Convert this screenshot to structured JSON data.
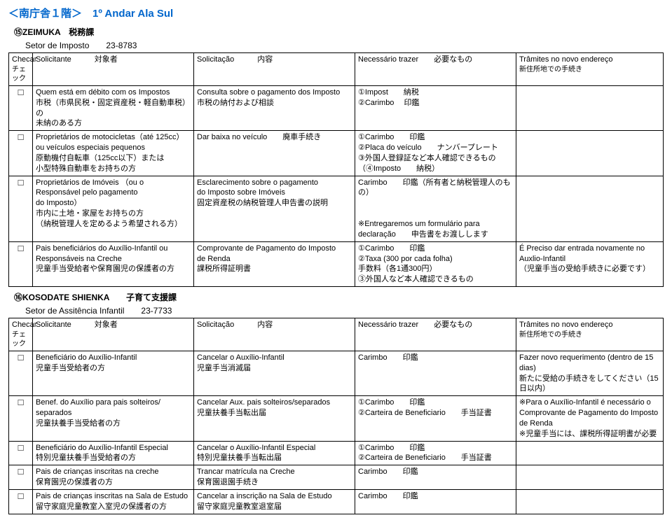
{
  "page_title": "＜南庁舎１階＞　1º Andar Ala Sul",
  "sections": [
    {
      "id": "zeimuka",
      "title": "⑮ZEIMUKA　税務課",
      "subtitle": "Setor de Imposto　　23-8783",
      "headers": {
        "check1": "Checar",
        "check2": "チェック",
        "applicant1": "Solicitante　　　対象者",
        "request1": "Solicitação　　　内容",
        "bring1": "Necessário trazer　　必要なもの",
        "tramite1": "Trâmites no novo endereço",
        "tramite2": "新住所地での手続き"
      },
      "rows": [
        {
          "applicant": "Quem está em débito com os Impostos\n市税（市県民税・固定資産税・軽自動車税）の\n未納のある方",
          "request": "Consulta sobre o pagamento dos Imposto\n市税の納付および相談",
          "bring": "①Impost　　納税\n②Carimbo　 印鑑",
          "tramite": ""
        },
        {
          "applicant": "Proprietários de motocicletas（até 125cc）\nou veículos especiais pequenos\n原動機付自転車（125cc以下）または\n小型特殊自動車をお持ちの方",
          "request": "Dar baixa no veículo　　廃車手続き",
          "bring": "①Carimbo　　印鑑\n②Placa do veículo　　ナンバープレート\n③外国人登録証など本人確認できるもの\n（④Imposto　　納税）",
          "tramite": ""
        },
        {
          "applicant": "Proprietários de Imóveis （ou o\nResponsável pelo pagamento\ndo Imposto）\n市内に土地・家屋をお持ちの方\n（納税管理人を定めるよう希望される方）",
          "request": "Esclarecimento sobre o pagamento\ndo Imposto sobre Imóveis\n固定資産税の納税管理人申告書の説明",
          "bring": "Carimbo　　印鑑（所有者と納税管理人のもの）\n\n\n※Entregaremos um formulário para\ndeclaração　　申告書をお渡しします",
          "tramite": ""
        },
        {
          "applicant": "Pais beneficiários do Auxílio-Infantil  ou\nResponsáveis na Creche\n児童手当受給者や保育園児の保護者の方",
          "request": "Comprovante de Pagamento do Imposto\nde Renda\n課税所得証明書",
          "bring": "①Carimbo　　印鑑\n②Taxa (300 por cada folha)\n手数料（各1通300円）\n③外国人など本人確認できるもの",
          "tramite": "É Preciso dar entrada novamente no\nAuxlio-Infantil\n（児童手当の受給手続きに必要です）"
        }
      ]
    },
    {
      "id": "kosodate",
      "title": "⑯KOSODATE SHIENKA　　子育て支援課",
      "subtitle": "Setor de Assitência Infantil　　23-7733",
      "headers": {
        "check1": "Checar",
        "check2": "チェック",
        "applicant1": "Solicitante　　　対象者",
        "request1": "Solicitação　　　内容",
        "bring1": "Necessário trazer　　必要なもの",
        "tramite1": "Trâmites no novo endereço",
        "tramite2": "新住所地での手続き"
      },
      "rows": [
        {
          "applicant": "Beneficiário do Auxílio-Infantil\n児童手当受給者の方",
          "request": "Cancelar o Auxílio-Infantil\n児童手当消滅届",
          "bring": "Carimbo　　印鑑",
          "tramite": "Fazer novo requerimento (dentro de 15 dias)\n新たに受給の手続きをしてください（15日以内）"
        },
        {
          "applicant": "Benef. do Auxílio para pais solteiros/\nseparados\n児童扶養手当受給者の方",
          "request": "Cancelar Aux. pais solteiros/separados\n児童扶養手当転出届",
          "bring": "①Carimbo　　印鑑\n②Carteira de Beneficiario　　手当証書",
          "tramite": "※Para o Auxílio-Infantil é necessário o\nComprovante de Pagamento do  Imposto\nde Renda\n※児童手当には、課税所得証明書が必要"
        },
        {
          "applicant": "Beneficiário do Auxílio-Infantil Especial\n特別児童扶養手当受給者の方",
          "request": "Cancelar o Auxílio-Infantil Especial\n特別児童扶養手当転出届",
          "bring": "①Carimbo　　印鑑\n②Carteira de Beneficiario　　手当証書",
          "tramite": ""
        },
        {
          "applicant": "Pais de crianças inscritas na creche\n保育園児の保護者の方",
          "request": "Trancar matrícula na Creche\n保育園退園手続き",
          "bring": "Carimbo　　印鑑",
          "tramite": ""
        },
        {
          "applicant": "Pais de crianças inscritas na Sala de Estudo\n留守家庭児童教室入室児の保護者の方",
          "request": "Cancelar a inscrição na Sala de Estudo\n留守家庭児童教室退室届",
          "bring": "Carimbo　　印鑑",
          "tramite": ""
        }
      ]
    }
  ],
  "checkbox_glyph": "□"
}
